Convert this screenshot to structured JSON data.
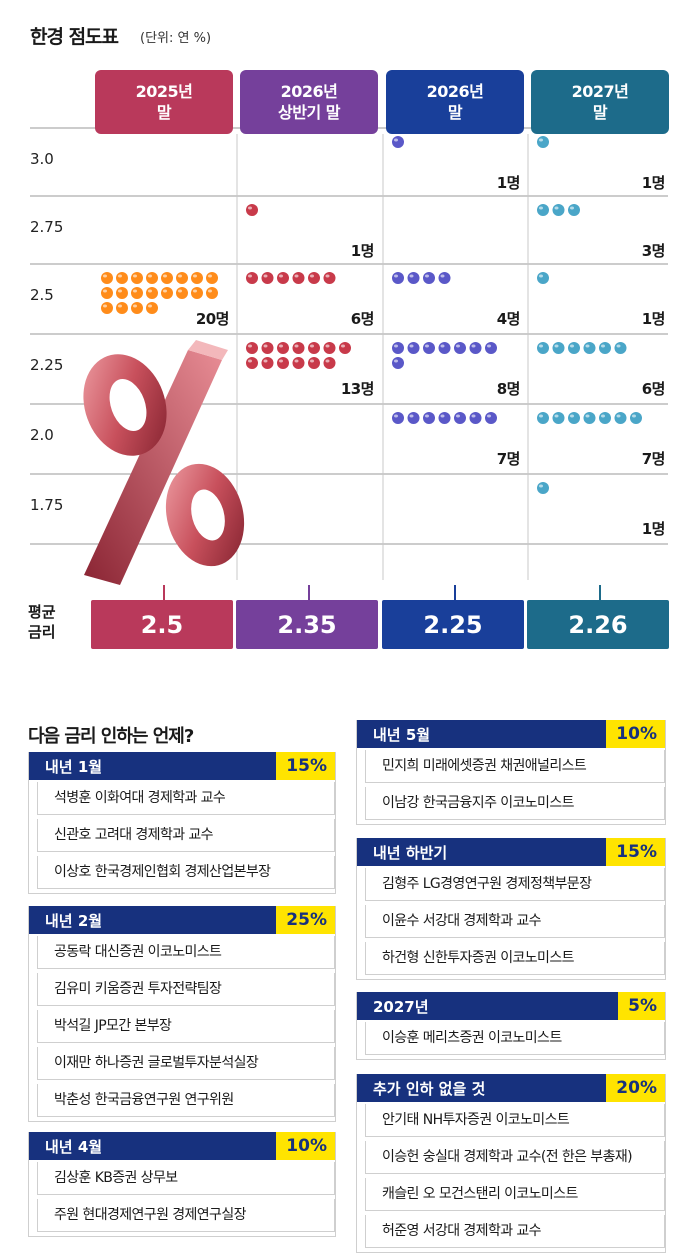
{
  "title": "한경 점도표",
  "unit": "(단위: 연 %)",
  "chart_data": {
    "type": "scatter",
    "title": "한경 점도표",
    "subtitle": "(단위: 연 %)",
    "columns": [
      {
        "label": "2025년\n말",
        "color": "#b9395b",
        "dot": "#ff8c1a"
      },
      {
        "label": "2026년\n상반기 말",
        "color": "#75409b",
        "dot": "#c83a4a"
      },
      {
        "label": "2026년\n말",
        "color": "#193f9a",
        "dot": "#5a58c8"
      },
      {
        "label": "2027년\n말",
        "color": "#1d6b8a",
        "dot": "#4aa6c8"
      }
    ],
    "rates": [
      "3.0",
      "2.75",
      "2.5",
      "2.25",
      "2.0",
      "1.75"
    ],
    "series": [
      {
        "name": "2025년 말",
        "counts": [
          0,
          0,
          20,
          0,
          0,
          0
        ],
        "labels": [
          "",
          "",
          "20명",
          "",
          "",
          ""
        ]
      },
      {
        "name": "2026년 상반기 말",
        "counts": [
          0,
          1,
          6,
          13,
          0,
          0
        ],
        "labels": [
          "",
          "1명",
          "6명",
          "13명",
          "",
          ""
        ]
      },
      {
        "name": "2026년 말",
        "counts": [
          1,
          0,
          4,
          8,
          7,
          0
        ],
        "labels": [
          "1명",
          "",
          "4명",
          "8명",
          "7명",
          ""
        ]
      },
      {
        "name": "2027년 말",
        "counts": [
          1,
          3,
          1,
          6,
          7,
          1
        ],
        "labels": [
          "1명",
          "3명",
          "1명",
          "6명",
          "7명",
          "1명"
        ]
      }
    ],
    "average_label": "평균\n금리",
    "averages": [
      "2.5",
      "2.35",
      "2.25",
      "2.26"
    ]
  },
  "survey": {
    "title": "다음 금리 인하는 언제?",
    "groups": [
      {
        "label": "내년 1월",
        "pct": "15%",
        "names": [
          "석병훈 이화여대 경제학과 교수",
          "신관호 고려대 경제학과 교수",
          "이상호 한국경제인협회 경제산업본부장"
        ]
      },
      {
        "label": "내년 2월",
        "pct": "25%",
        "names": [
          "공동락 대신증권 이코노미스트",
          "김유미 키움증권 투자전략팀장",
          "박석길 JP모간 본부장",
          "이재만 하나증권 글로벌투자분석실장",
          "박춘성 한국금융연구원 연구위원"
        ]
      },
      {
        "label": "내년 4월",
        "pct": "10%",
        "names": [
          "김상훈 KB증권 상무보",
          "주원 현대경제연구원 경제연구실장"
        ]
      },
      {
        "label": "내년 5월",
        "pct": "10%",
        "names": [
          "민지희 미래에셋증권 채권애널리스트",
          "이남강 한국금융지주 이코노미스트"
        ]
      },
      {
        "label": "내년 하반기",
        "pct": "15%",
        "names": [
          "김형주 LG경영연구원 경제정책부문장",
          "이윤수 서강대 경제학과 교수",
          "하건형 신한투자증권 이코노미스트"
        ]
      },
      {
        "label": "2027년",
        "pct": "5%",
        "names": [
          "이승훈 메리츠증권 이코노미스트"
        ]
      },
      {
        "label": "추가 인하 없을 것",
        "pct": "20%",
        "names": [
          "안기태 NH투자증권 이코노미스트",
          "이승헌 숭실대 경제학과 교수(전 한은 부총재)",
          "캐슬린 오 모건스탠리 이코노미스트",
          "허준영 서강대 경제학과 교수"
        ]
      }
    ]
  }
}
